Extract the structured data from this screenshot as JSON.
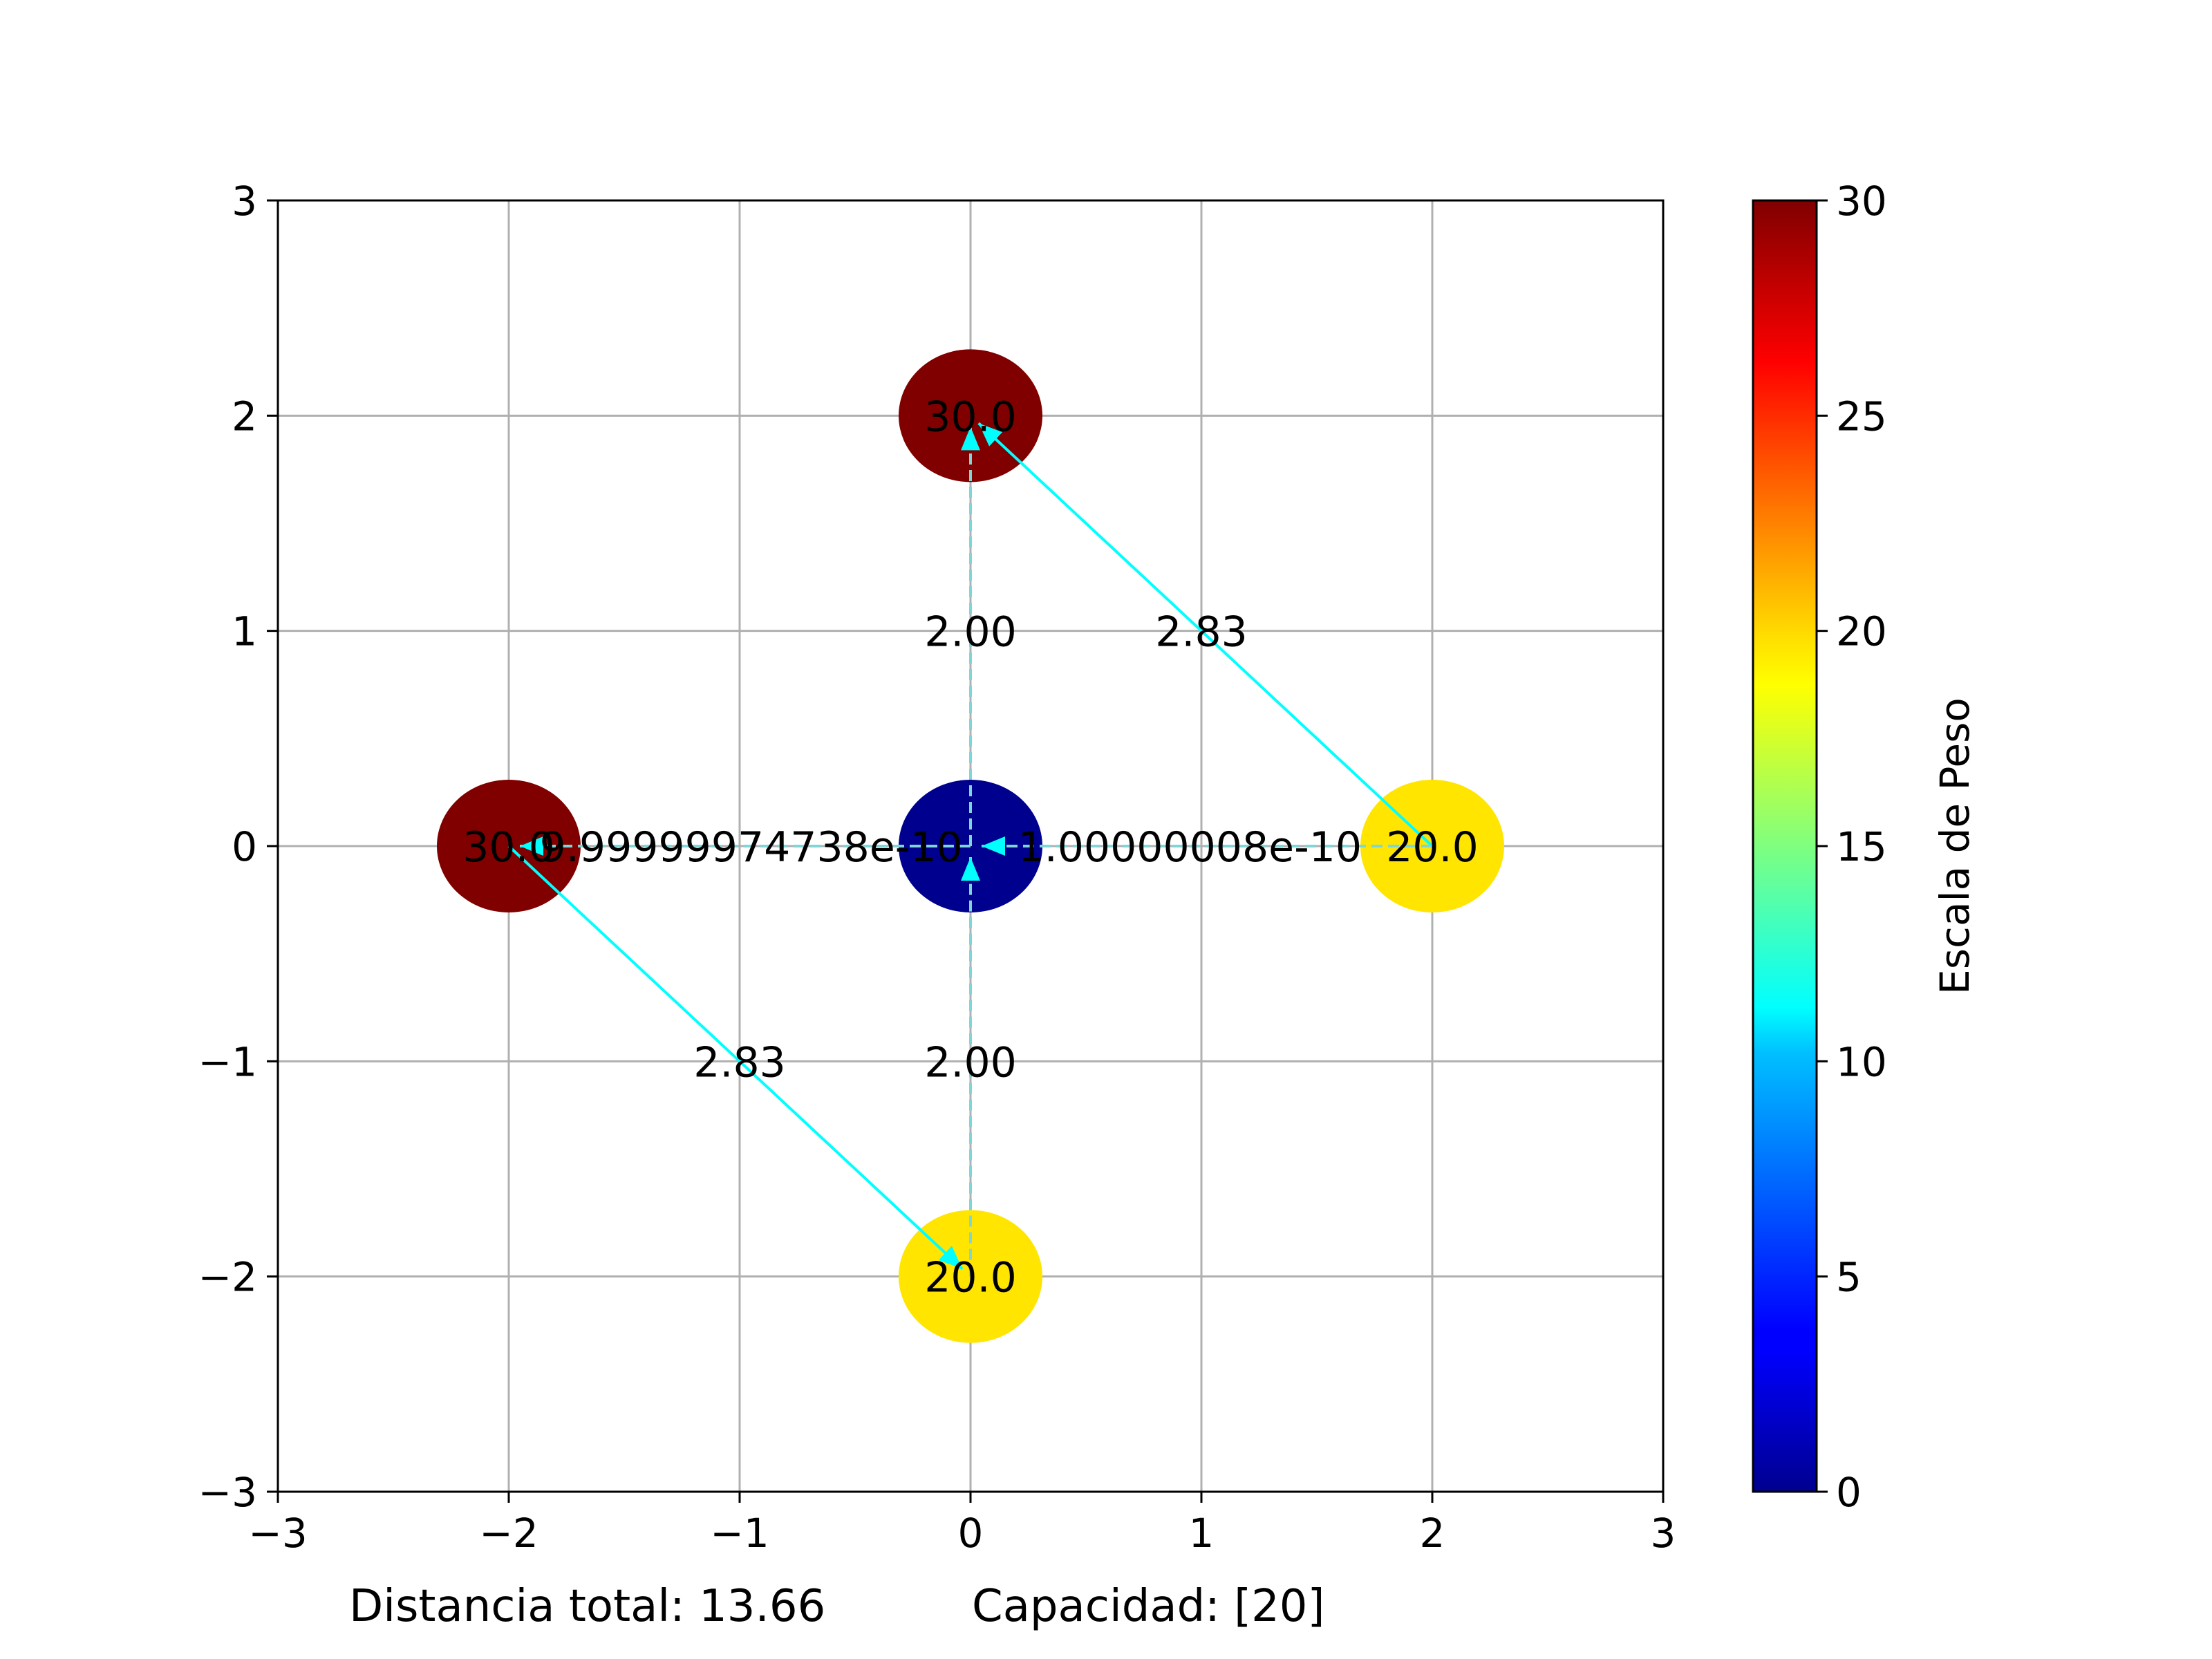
{
  "chart_data": {
    "type": "scatter",
    "title": "",
    "xlabel": "",
    "ylabel": "",
    "xlim": [
      -3,
      3
    ],
    "ylim": [
      -3,
      3
    ],
    "grid": true,
    "x_ticks": [
      "−3",
      "−2",
      "−1",
      "0",
      "1",
      "2",
      "3"
    ],
    "y_ticks": [
      "−3",
      "−2",
      "−1",
      "0",
      "1",
      "2",
      "3"
    ],
    "x_tick_values": [
      -3,
      -2,
      -1,
      0,
      1,
      2,
      3
    ],
    "y_tick_values": [
      -3,
      -2,
      -1,
      0,
      1,
      2,
      3
    ],
    "colormap": "jet",
    "colorbar": {
      "label": "Escala de Peso",
      "range": [
        0,
        30
      ],
      "ticks": [
        "0",
        "5",
        "10",
        "15",
        "20",
        "25",
        "30"
      ],
      "tick_values": [
        0,
        5,
        10,
        15,
        20,
        25,
        30
      ]
    },
    "nodes": [
      {
        "x": 0,
        "y": 0,
        "weight": 0,
        "label": "",
        "color": "#00008f"
      },
      {
        "x": 0,
        "y": 2,
        "weight": 30,
        "label": "30.0",
        "color": "#800000"
      },
      {
        "x": -2,
        "y": 0,
        "weight": 30,
        "label": "30.0",
        "color": "#800000"
      },
      {
        "x": 2,
        "y": 0,
        "weight": 20,
        "label": "20.0",
        "color": "#ffe500"
      },
      {
        "x": 0,
        "y": -2,
        "weight": 20,
        "label": "20.0",
        "color": "#ffe500"
      }
    ],
    "edges": [
      {
        "from": [
          0,
          0
        ],
        "to": [
          0,
          2
        ],
        "style": "dashed",
        "label": "2.00",
        "label_at": [
          0,
          1
        ]
      },
      {
        "from": [
          2,
          0
        ],
        "to": [
          0,
          2
        ],
        "style": "solid",
        "label": "2.83",
        "label_at": [
          1,
          1
        ]
      },
      {
        "from": [
          0,
          -2
        ],
        "to": [
          0,
          0
        ],
        "style": "dashed",
        "label": "2.00",
        "label_at": [
          0,
          -1
        ]
      },
      {
        "from": [
          -2,
          0
        ],
        "to": [
          0,
          -2
        ],
        "style": "solid",
        "label": "2.83",
        "label_at": [
          -1,
          -1
        ]
      },
      {
        "from": [
          0,
          0
        ],
        "to": [
          -2,
          0
        ],
        "style": "dashed",
        "label": "9.99999974738e-10",
        "label_at": [
          -0.95,
          0
        ]
      },
      {
        "from": [
          2,
          0
        ],
        "to": [
          0,
          0
        ],
        "style": "dashed",
        "label": "1.00000008e-10",
        "label_at": [
          0.95,
          0
        ]
      }
    ],
    "edge_color": "#00ffff",
    "footer": {
      "distance": "Distancia total: 13.66",
      "capacity": "Capacidad: [20]"
    }
  }
}
